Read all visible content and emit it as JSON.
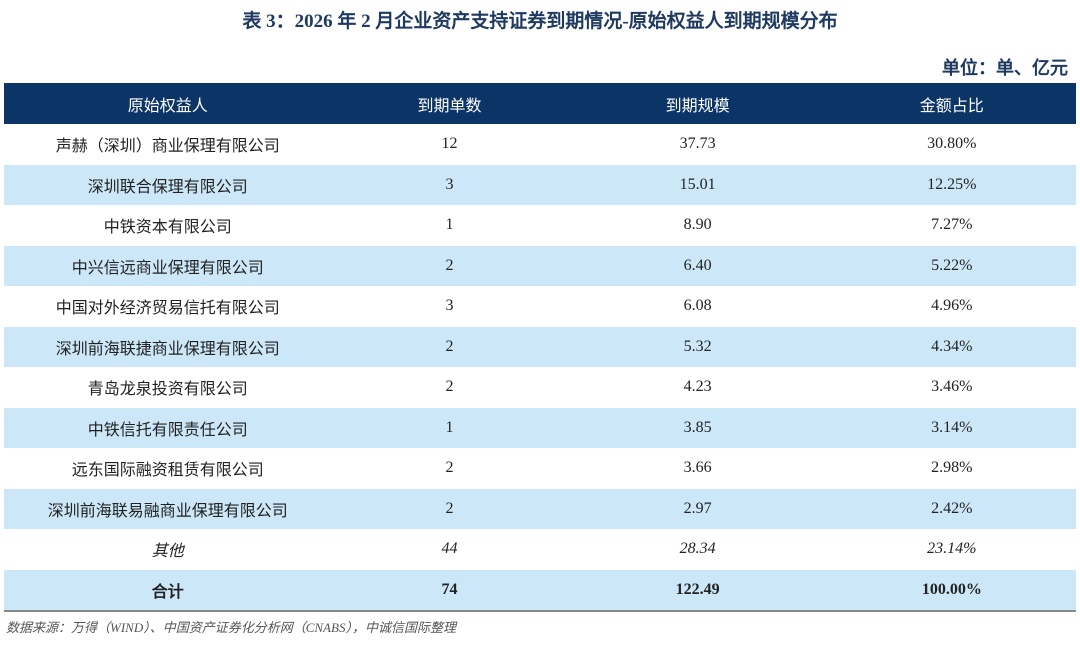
{
  "title": "表 3：2026 年 2 月企业资产支持证券到期情况-原始权益人到期规模分布",
  "unit": "单位：单、亿元",
  "table": {
    "headers": [
      "原始权益人",
      "到期单数",
      "到期规模",
      "金额占比"
    ],
    "rows": [
      [
        "声赫（深圳）商业保理有限公司",
        "12",
        "37.73",
        "30.80%"
      ],
      [
        "深圳联合保理有限公司",
        "3",
        "15.01",
        "12.25%"
      ],
      [
        "中铁资本有限公司",
        "1",
        "8.90",
        "7.27%"
      ],
      [
        "中兴信远商业保理有限公司",
        "2",
        "6.40",
        "5.22%"
      ],
      [
        "中国对外经济贸易信托有限公司",
        "3",
        "6.08",
        "4.96%"
      ],
      [
        "深圳前海联捷商业保理有限公司",
        "2",
        "5.32",
        "4.34%"
      ],
      [
        "青岛龙泉投资有限公司",
        "2",
        "4.23",
        "3.46%"
      ],
      [
        "中铁信托有限责任公司",
        "1",
        "3.85",
        "3.14%"
      ],
      [
        "远东国际融资租赁有限公司",
        "2",
        "3.66",
        "2.98%"
      ],
      [
        "深圳前海联易融商业保理有限公司",
        "2",
        "2.97",
        "2.42%"
      ],
      [
        "其他",
        "44",
        "28.34",
        "23.14%"
      ],
      [
        "合计",
        "74",
        "122.49",
        "100.00%"
      ]
    ]
  },
  "source": "数据来源：万得（WIND）、中国资产证券化分析网（CNABS），中诚信国际整理",
  "colors": {
    "header_bg": "#0b3566",
    "stripe_bg": "#cce8f8",
    "title": "#1f3a60"
  }
}
